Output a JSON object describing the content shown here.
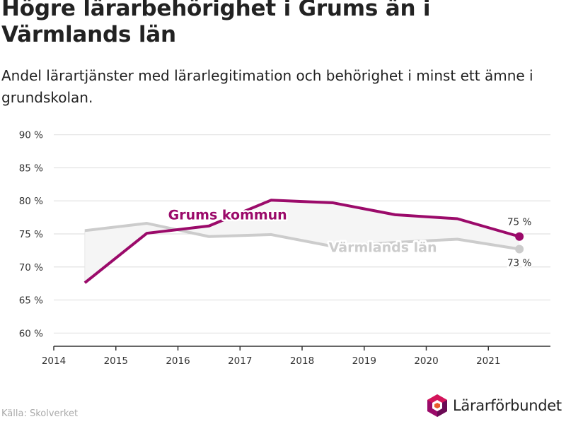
{
  "header": {
    "title": "Högre lärarbehörighet i Grums än i Värmlands län",
    "subtitle": "Andel lärartjänster med lärarlegitimation och behörighet i minst ett ämne i grundskolan."
  },
  "footer": {
    "source": "Källa: Skolverket",
    "brand": "Lärarförbundet"
  },
  "colors": {
    "grums": "#9b0a6a",
    "varmland": "#cccccc",
    "fill": "#f5f5f5",
    "grid": "#e2e2e2",
    "axis": "#333333"
  },
  "chart_data": {
    "type": "line",
    "title": "Högre lärarbehörighet i Grums än i Värmlands län",
    "subtitle": "Andel lärartjänster med lärarlegitimation och behörighet i minst ett ämne i grundskolan.",
    "x_ticks": [
      2014,
      2015,
      2016,
      2017,
      2018,
      2019,
      2020,
      2021
    ],
    "x_range": [
      2014,
      2022
    ],
    "y_ticks": [
      60,
      65,
      70,
      75,
      80,
      85,
      90
    ],
    "y_tick_labels": [
      "60 %",
      "65 %",
      "70 %",
      "75 %",
      "80 %",
      "85 %",
      "90 %"
    ],
    "y_range": [
      58,
      92
    ],
    "grid": true,
    "series": [
      {
        "name": "Grums kommun",
        "x": [
          2014.5,
          2015.5,
          2016.5,
          2017.5,
          2018.5,
          2019.5,
          2020.5,
          2021.5
        ],
        "values": [
          67.6,
          75.1,
          76.2,
          80.1,
          79.7,
          77.9,
          77.3,
          74.6
        ],
        "end_label": "75 %"
      },
      {
        "name": "Värmlands län",
        "x": [
          2014.5,
          2015.5,
          2016.5,
          2017.5,
          2018.5,
          2019.5,
          2020.5,
          2021.5
        ],
        "values": [
          75.5,
          76.6,
          74.6,
          74.9,
          73.1,
          73.7,
          74.2,
          72.7
        ],
        "end_label": "73 %"
      }
    ]
  }
}
